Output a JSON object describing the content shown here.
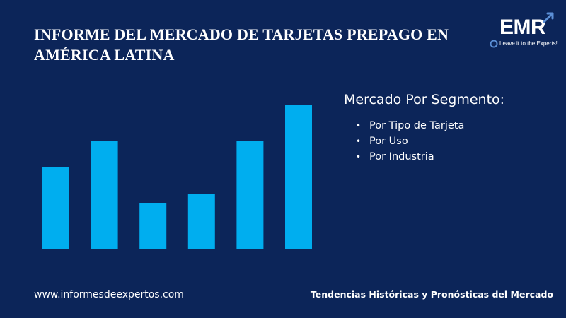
{
  "header": {
    "title_line1": "INFORME DEL MERCADO DE TARJETAS PREPAGO EN",
    "title_line2": "AMÉRICA LATINA"
  },
  "logo": {
    "text": "EMR",
    "tagline": "Leave it to the Experts!"
  },
  "colors": {
    "background": "#0c2559",
    "bar": "#00aeef",
    "text": "#ffffff"
  },
  "chart_data": {
    "type": "bar",
    "values": [
      115,
      152,
      65,
      77,
      152,
      203
    ],
    "title": "",
    "xlabel": "",
    "ylabel": "",
    "ylim": [
      0,
      215
    ],
    "grid": false,
    "axes_visible": false
  },
  "segments": {
    "heading": "Mercado Por Segmento:",
    "items": [
      {
        "label": "Por Tipo de Tarjeta"
      },
      {
        "label": "Por Uso"
      },
      {
        "label": "Por Industria"
      }
    ],
    "bullet": "•"
  },
  "footer": {
    "url": "www.informesdeexpertos.com",
    "tagline": "Tendencias Históricas y Pronósticas del Mercado"
  }
}
